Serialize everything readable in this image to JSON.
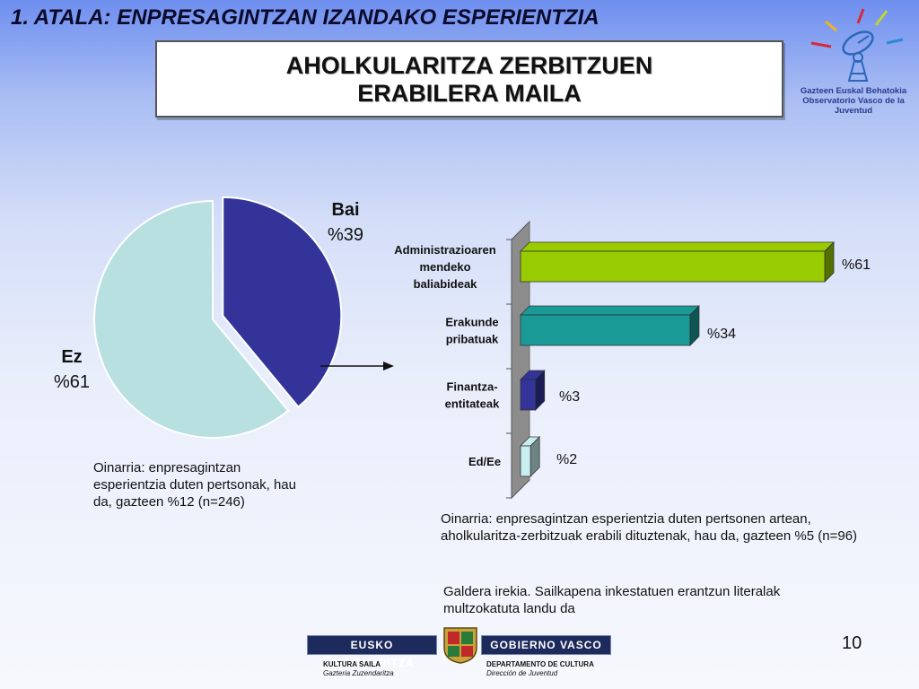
{
  "header": {
    "section_title": "1. ATALA: ENPRESAGINTZAN IZANDAKO ESPERIENTZIA",
    "title_line1": "AHOLKULARITZA ZERBITZUEN",
    "title_line2": "ERABILERA MAILA"
  },
  "logo": {
    "line1": "Gazteen Euskal Behatokia",
    "line2": "Observatorio Vasco de la Juventud"
  },
  "chart_data": [
    {
      "type": "pie",
      "labels": [
        "Bai",
        "Ez"
      ],
      "values": [
        39,
        61
      ],
      "value_labels": [
        "%39",
        "%61"
      ],
      "colors": [
        "#333399",
        "#b8e0e0"
      ],
      "exploded": "Bai"
    },
    {
      "type": "bar",
      "orientation": "horizontal",
      "categories": [
        "Administrazioaren mendeko baliabideak",
        "Erakunde pribatuak",
        "Finantza-entitateak",
        "Ed/Ee"
      ],
      "category_lines": [
        [
          "Administrazioaren",
          "mendeko",
          "baliabideak"
        ],
        [
          "Erakunde",
          "pribatuak"
        ],
        [
          "Finantza-",
          "entitateak"
        ],
        [
          "Ed/Ee"
        ]
      ],
      "values": [
        61,
        34,
        3,
        2
      ],
      "value_labels": [
        "%61",
        "%34",
        "%3",
        "%2"
      ],
      "colors": [
        "#99cc00",
        "#1a9a96",
        "#333399",
        "#c8eef0"
      ],
      "xlim": [
        0,
        61
      ]
    }
  ],
  "notes": {
    "pie_base": "Oinarria: enpresagintzan esperientzia duten pertsonak, hau da, gazteen %12 (n=246)",
    "bar_base": "Oinarria: enpresagintzan esperientzia duten pertsonen artean, aholkularitza-zerbitzuak erabili dituztenak, hau da, gazteen %5 (n=96)",
    "open_question": "Galdera irekia. Sailkapena inkestatuen erantzun literalak multzokatuta landu da"
  },
  "footer": {
    "left_banner": "EUSKO JAURLARITZA",
    "right_banner": "GOBIERNO VASCO",
    "left_dept": "KULTURA SAILA",
    "left_sub": "Gazteria Zuzendaritza",
    "right_dept": "DEPARTAMENTO DE CULTURA",
    "right_sub": "Dirección de Juventud"
  },
  "page_number": "10"
}
